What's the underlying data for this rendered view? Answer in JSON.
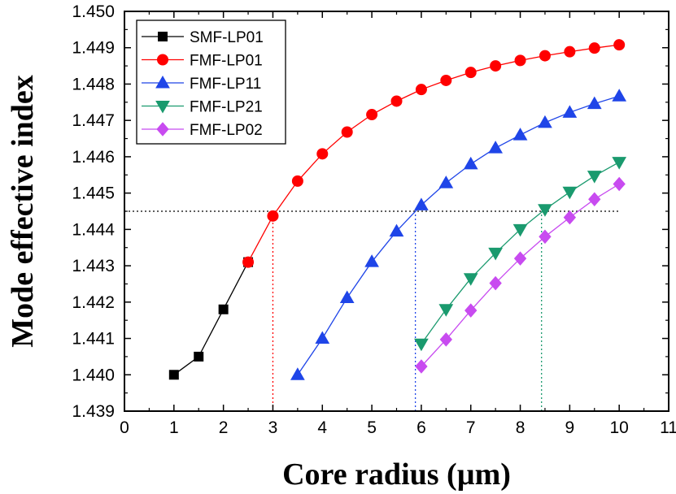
{
  "chart_data": {
    "type": "line",
    "title": "",
    "xlabel": "Core radius (µm)",
    "ylabel": "Mode effective index",
    "xlim": [
      0,
      11
    ],
    "ylim": [
      1.439,
      1.45
    ],
    "xticks": [
      0,
      1,
      2,
      3,
      4,
      5,
      6,
      7,
      8,
      9,
      10,
      11
    ],
    "xtick_labels": [
      "0",
      "1",
      "2",
      "3",
      "4",
      "5",
      "6",
      "7",
      "8",
      "9",
      "10",
      "11"
    ],
    "yticks": [
      1.439,
      1.44,
      1.441,
      1.442,
      1.443,
      1.444,
      1.445,
      1.446,
      1.447,
      1.448,
      1.449,
      1.45
    ],
    "ytick_labels": [
      "1.439",
      "1.440",
      "1.441",
      "1.442",
      "1.443",
      "1.444",
      "1.445",
      "1.446",
      "1.447",
      "1.448",
      "1.449",
      "1.450"
    ],
    "legend_position": "top-left",
    "series": [
      {
        "name": "SMF-LP01",
        "color": "#000000",
        "marker": "square",
        "x": [
          1,
          1.5,
          2,
          2.5
        ],
        "y": [
          1.44,
          1.4405,
          1.4418,
          1.4431
        ]
      },
      {
        "name": "FMF-LP01",
        "color": "#ff0000",
        "marker": "circle",
        "x": [
          2.5,
          3,
          3.5,
          4,
          4.5,
          5,
          5.5,
          6,
          6.5,
          7,
          7.5,
          8,
          8.5,
          9,
          9.5,
          10
        ],
        "y": [
          1.4431,
          1.44437,
          1.44533,
          1.44608,
          1.44668,
          1.44716,
          1.44753,
          1.44785,
          1.4481,
          1.44832,
          1.4485,
          1.44865,
          1.44878,
          1.44889,
          1.44899,
          1.44908
        ]
      },
      {
        "name": "FMF-LP11",
        "color": "#1f45e8",
        "marker": "triangle-up",
        "x": [
          3.5,
          4,
          4.5,
          5,
          5.5,
          6,
          6.5,
          7,
          7.5,
          8,
          8.5,
          9,
          9.5,
          10
        ],
        "y": [
          1.44,
          1.441,
          1.44212,
          1.44311,
          1.44395,
          1.44467,
          1.44528,
          1.4458,
          1.44624,
          1.4466,
          1.44694,
          1.44722,
          1.44746,
          1.44767
        ]
      },
      {
        "name": "FMF-LP21",
        "color": "#1a9a6e",
        "marker": "triangle-down",
        "x": [
          6,
          6.5,
          7,
          7.5,
          8,
          8.5,
          9,
          9.5,
          10
        ],
        "y": [
          1.44085,
          1.4418,
          1.44265,
          1.44335,
          1.444,
          1.44455,
          1.44503,
          1.44547,
          1.44585
        ]
      },
      {
        "name": "FMF-LP02",
        "color": "#c84bf0",
        "marker": "diamond",
        "x": [
          6,
          6.5,
          7,
          7.5,
          8,
          8.5,
          9,
          9.5,
          10
        ],
        "y": [
          1.44023,
          1.44097,
          1.44177,
          1.44252,
          1.4432,
          1.4438,
          1.44433,
          1.44483,
          1.44525
        ]
      }
    ],
    "reference_lines": [
      {
        "orientation": "horizontal",
        "y": 1.4445,
        "x_from": 0,
        "x_to": 10,
        "color": "#000000",
        "style": "dotted"
      },
      {
        "orientation": "vertical",
        "x": 3.0,
        "y_from": 1.439,
        "y_to": 1.44437,
        "color": "#ff0000",
        "style": "dotted"
      },
      {
        "orientation": "vertical",
        "x": 5.88,
        "y_from": 1.439,
        "y_to": 1.4445,
        "color": "#1f45e8",
        "style": "dotted"
      },
      {
        "orientation": "vertical",
        "x": 8.43,
        "y_from": 1.439,
        "y_to": 1.4445,
        "color": "#1a9a6e",
        "style": "dotted"
      }
    ]
  }
}
